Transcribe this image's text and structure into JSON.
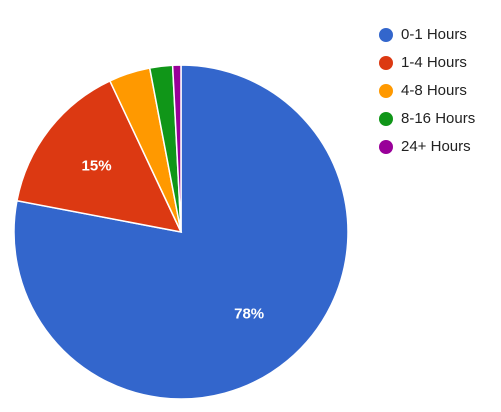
{
  "chart_data": {
    "type": "pie",
    "categories": [
      "0-1 Hours",
      "1-4 Hours",
      "4-8 Hours",
      "8-16 Hours",
      "24+ Hours"
    ],
    "values": [
      78,
      15,
      4,
      2.2,
      0.8
    ],
    "value_labels": [
      "78%",
      "15%",
      null,
      null,
      null
    ],
    "colors": [
      "#3366cc",
      "#dc3912",
      "#ff9900",
      "#109618",
      "#990099"
    ],
    "legend": "right"
  }
}
